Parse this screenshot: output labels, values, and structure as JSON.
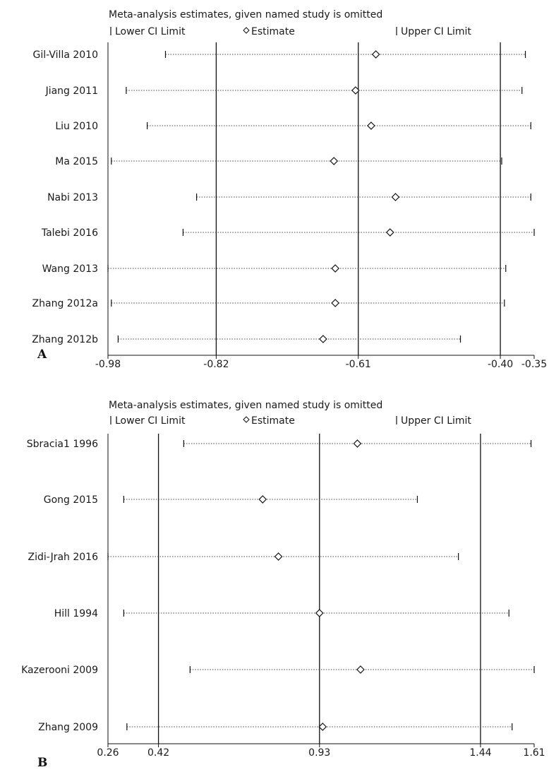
{
  "chart_data": [
    {
      "type": "forest",
      "panel_label": "A",
      "title": "Meta-analysis estimates, given named study is omitted",
      "legend": {
        "lower": "Lower CI Limit",
        "estimate": "Estimate",
        "upper": "Upper CI Limit"
      },
      "xlim": [
        -0.98,
        -0.35
      ],
      "xticks": [
        -0.98,
        -0.82,
        -0.61,
        -0.4,
        -0.35
      ],
      "xtick_labels": [
        "-0.98",
        "-0.82",
        "-0.61",
        "-0.40",
        "-0.35"
      ],
      "reference_lines": [
        -0.82,
        -0.61,
        -0.4
      ],
      "studies": [
        {
          "name": "Gil-Villa 2010",
          "lower": -0.895,
          "estimate": -0.584,
          "upper": -0.363
        },
        {
          "name": "Jiang 2011",
          "lower": -0.953,
          "estimate": -0.614,
          "upper": -0.368
        },
        {
          "name": "Liu 2010",
          "lower": -0.922,
          "estimate": -0.591,
          "upper": -0.355
        },
        {
          "name": "Ma 2015",
          "lower": -0.975,
          "estimate": -0.646,
          "upper": -0.398
        },
        {
          "name": "Nabi 2013",
          "lower": -0.849,
          "estimate": -0.555,
          "upper": -0.355
        },
        {
          "name": "Talebi 2016",
          "lower": -0.869,
          "estimate": -0.563,
          "upper": -0.35
        },
        {
          "name": "Wang 2013",
          "lower": -0.98,
          "estimate": -0.644,
          "upper": -0.392
        },
        {
          "name": "Zhang 2012a",
          "lower": -0.975,
          "estimate": -0.644,
          "upper": -0.394
        },
        {
          "name": "Zhang 2012b",
          "lower": -0.965,
          "estimate": -0.662,
          "upper": -0.459
        }
      ]
    },
    {
      "type": "forest",
      "panel_label": "B",
      "title": "Meta-analysis estimates, given named study is omitted",
      "legend": {
        "lower": "Lower CI Limit",
        "estimate": "Estimate",
        "upper": "Upper CI Limit"
      },
      "xlim": [
        0.26,
        1.61
      ],
      "xticks": [
        0.26,
        0.42,
        0.93,
        1.44,
        1.61
      ],
      "xtick_labels": [
        "0.26",
        "0.42",
        "0.93",
        "1.44",
        "1.61"
      ],
      "reference_lines": [
        0.42,
        0.93,
        1.44
      ],
      "studies": [
        {
          "name": "Sbracia1 1996",
          "lower": 0.5,
          "estimate": 1.05,
          "upper": 1.6
        },
        {
          "name": "Gong 2015",
          "lower": 0.31,
          "estimate": 0.75,
          "upper": 1.24
        },
        {
          "name": "Zidi-Jrah 2016",
          "lower": 0.26,
          "estimate": 0.8,
          "upper": 1.37
        },
        {
          "name": "Hill 1994",
          "lower": 0.31,
          "estimate": 0.93,
          "upper": 1.53
        },
        {
          "name": "Kazerooni 2009",
          "lower": 0.52,
          "estimate": 1.06,
          "upper": 1.61
        },
        {
          "name": "Zhang 2009",
          "lower": 0.32,
          "estimate": 0.94,
          "upper": 1.54
        }
      ]
    }
  ]
}
